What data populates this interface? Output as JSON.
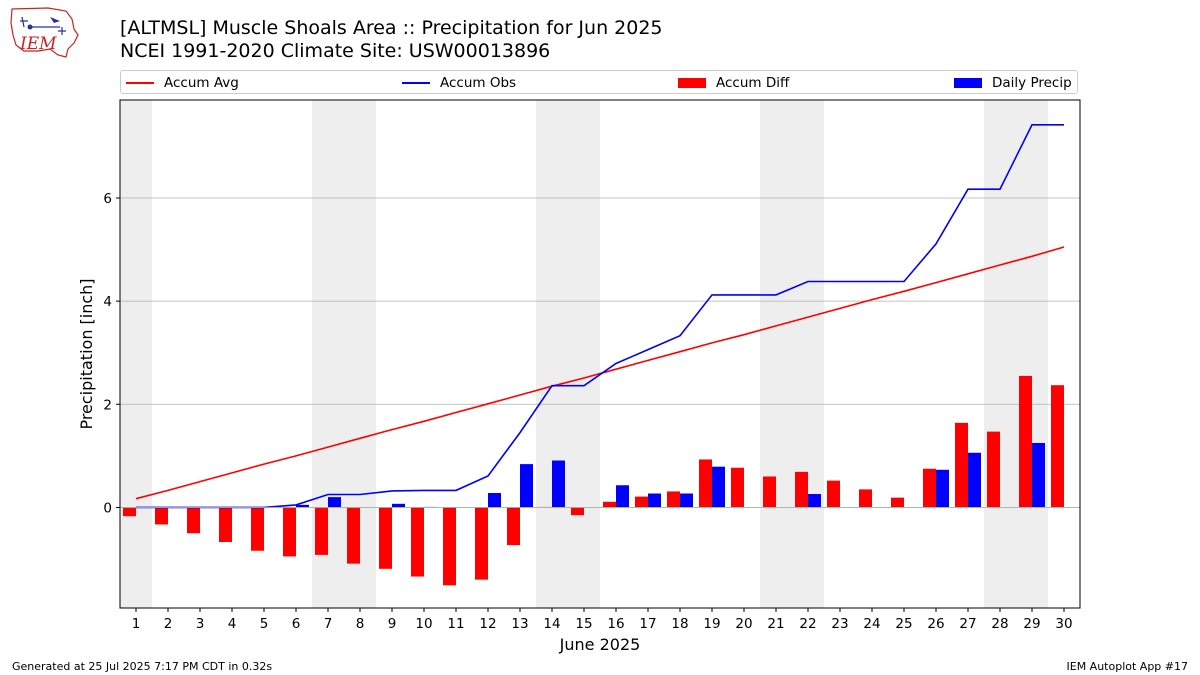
{
  "logo": {
    "text": "IEM"
  },
  "title": {
    "line1": "[ALTMSL] Muscle Shoals Area :: Precipitation for Jun 2025",
    "line2": "NCEI 1991-2020 Climate Site: USW00013896"
  },
  "footer": {
    "left": "Generated at 25 Jul 2025 7:17 PM CDT in 0.32s",
    "right": "IEM Autoplot App #17"
  },
  "colors": {
    "avg": "#ff0000",
    "obs": "#0000ff",
    "diff": "#ff0000",
    "daily": "#0000ff",
    "weekend_shade": "#eeeeee",
    "grid": "#b0b0b0"
  },
  "chart_data": {
    "type": "bar",
    "xlabel": "June 2025",
    "ylabel": "Precipitation [inch]",
    "ylim": [
      -1.95,
      7.9
    ],
    "yticks": [
      0,
      2,
      4,
      6
    ],
    "grid": "horizontal",
    "legend_position": "top",
    "x": [
      1,
      2,
      3,
      4,
      5,
      6,
      7,
      8,
      9,
      10,
      11,
      12,
      13,
      14,
      15,
      16,
      17,
      18,
      19,
      20,
      21,
      22,
      23,
      24,
      25,
      26,
      27,
      28,
      29,
      30
    ],
    "shaded_days": [
      1,
      7,
      8,
      14,
      15,
      21,
      22,
      28,
      29
    ],
    "series": [
      {
        "name": "Accum Avg",
        "kind": "line",
        "values": [
          0.17,
          0.33,
          0.5,
          0.67,
          0.84,
          1.0,
          1.17,
          1.34,
          1.51,
          1.67,
          1.84,
          2.01,
          2.18,
          2.35,
          2.51,
          2.68,
          2.85,
          3.02,
          3.19,
          3.35,
          3.52,
          3.69,
          3.86,
          4.03,
          4.19,
          4.36,
          4.53,
          4.7,
          4.87,
          5.05
        ]
      },
      {
        "name": "Accum Obs",
        "kind": "line",
        "values": [
          0.0,
          0.0,
          0.0,
          0.0,
          0.0,
          0.05,
          0.25,
          0.25,
          0.32,
          0.33,
          0.33,
          0.61,
          1.45,
          2.36,
          2.36,
          2.79,
          3.06,
          3.33,
          4.12,
          4.12,
          4.12,
          4.38,
          4.38,
          4.38,
          4.38,
          5.11,
          6.17,
          6.17,
          7.42,
          7.42
        ]
      },
      {
        "name": "Accum Diff",
        "kind": "bar",
        "values": [
          -0.17,
          -0.33,
          -0.5,
          -0.67,
          -0.84,
          -0.95,
          -0.92,
          -1.09,
          -1.19,
          -1.34,
          -1.51,
          -1.4,
          -0.73,
          0.01,
          -0.15,
          0.11,
          0.21,
          0.31,
          0.93,
          0.77,
          0.6,
          0.69,
          0.52,
          0.35,
          0.19,
          0.75,
          1.64,
          1.47,
          2.55,
          2.37
        ]
      },
      {
        "name": "Daily Precip",
        "kind": "bar",
        "values": [
          0,
          0,
          0,
          0,
          0,
          0.05,
          0.2,
          0,
          0.07,
          0.01,
          0,
          0.28,
          0.84,
          0.91,
          0,
          0.43,
          0.27,
          0.27,
          0.79,
          0,
          0,
          0.26,
          0,
          0,
          0,
          0.73,
          1.06,
          0,
          1.25,
          0
        ]
      }
    ]
  }
}
